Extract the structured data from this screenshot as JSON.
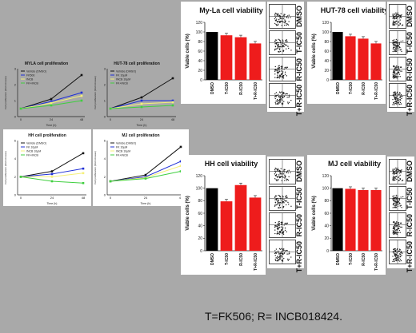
{
  "chart_data": [
    {
      "id": "myla-prolif",
      "type": "line",
      "title": "MYLA cell proliferation",
      "xlabel": "Time (h)",
      "ylabel": "Cell proliferation (fold increase)",
      "x": [
        0,
        24,
        48
      ],
      "x_ticks": [
        "0",
        "24",
        "48"
      ],
      "ylim": [
        0,
        3
      ],
      "y_ticks": [
        "0",
        "1",
        "2",
        "3"
      ],
      "legend": [
        "Vehicle (DMSO)",
        "FK506",
        "INCB",
        "FK+INCB"
      ],
      "series": [
        {
          "name": "Vehicle (DMSO)",
          "color": "#111111",
          "values": [
            0.5,
            1.1,
            2.6
          ]
        },
        {
          "name": "FK506",
          "color": "#1f2fd6",
          "values": [
            0.5,
            0.95,
            1.5
          ]
        },
        {
          "name": "INCB",
          "color": "#f5f07a",
          "values": [
            0.5,
            0.85,
            1.3
          ]
        },
        {
          "name": "FK+INCB",
          "color": "#3fcf3f",
          "values": [
            0.5,
            0.7,
            1.0
          ]
        }
      ]
    },
    {
      "id": "hut78-prolif",
      "type": "line",
      "title": "HUT-78 cell proliferation",
      "xlabel": "Time (h)",
      "ylabel": "Cell proliferation (fold increase)",
      "x": [
        0,
        24,
        48
      ],
      "x_ticks": [
        "0",
        "24",
        "48"
      ],
      "ylim": [
        0,
        3
      ],
      "y_ticks": [
        "0",
        "1",
        "2",
        "3"
      ],
      "legend": [
        "Vehicle (DMSO)",
        "FK 10µM",
        "INCB 10µM",
        "FK+INCB"
      ],
      "series": [
        {
          "name": "Vehicle (DMSO)",
          "color": "#111111",
          "values": [
            0.5,
            1.2,
            2.4
          ]
        },
        {
          "name": "FK 10µM",
          "color": "#1f2fd6",
          "values": [
            0.5,
            1.0,
            1.0
          ]
        },
        {
          "name": "INCB 10µM",
          "color": "#f5f07a",
          "values": [
            0.5,
            0.8,
            0.9
          ]
        },
        {
          "name": "FK+INCB",
          "color": "#3fcf3f",
          "values": [
            0.5,
            0.6,
            0.7
          ]
        }
      ]
    },
    {
      "id": "hh-prolif",
      "type": "line",
      "title": "HH cell proliferation",
      "xlabel": "Time (h)",
      "ylabel": "Cell proliferation (fold increase)",
      "x": [
        0,
        24,
        48
      ],
      "x_ticks": [
        "0",
        "24",
        "48"
      ],
      "ylim": [
        0,
        6
      ],
      "y_ticks": [
        "0",
        "2",
        "4",
        "6"
      ],
      "legend": [
        "Vehicle (DMSO)",
        "FK 10µM",
        "INCB 10µM",
        "FK+INCB"
      ],
      "series": [
        {
          "name": "Vehicle (DMSO)",
          "color": "#111111",
          "values": [
            2,
            2.6,
            4.6
          ]
        },
        {
          "name": "FK 10µM",
          "color": "#1f2fd6",
          "values": [
            2,
            2.3,
            2.9
          ]
        },
        {
          "name": "INCB 10µM",
          "color": "#f5f07a",
          "values": [
            2,
            2.0,
            2.4
          ]
        },
        {
          "name": "FK+INCB",
          "color": "#3fcf3f",
          "values": [
            2,
            1.5,
            1.3
          ]
        }
      ]
    },
    {
      "id": "mj-prolif",
      "type": "line",
      "title": "MJ cell proliferation",
      "xlabel": "Time (h)",
      "ylabel": "Cell proliferation (fold increase)",
      "x": [
        0,
        24,
        48
      ],
      "x_ticks": [
        "0",
        "24",
        "48"
      ],
      "ylim": [
        0,
        6
      ],
      "y_ticks": [
        "0",
        "2",
        "4",
        "6"
      ],
      "legend": [
        "Vehicle (DMSO)",
        "FK 10µM",
        "INCB 10µM",
        "FK+INCB"
      ],
      "series": [
        {
          "name": "Vehicle (DMSO)",
          "color": "#111111",
          "values": [
            1.5,
            2.2,
            5.3
          ]
        },
        {
          "name": "FK 10µM",
          "color": "#1f2fd6",
          "values": [
            1.5,
            2.0,
            3.7
          ]
        },
        {
          "name": "INCB 10µM",
          "color": "#f5f07a",
          "values": [
            1.5,
            1.9,
            3.2
          ]
        },
        {
          "name": "FK+INCB",
          "color": "#3fcf3f",
          "values": [
            1.5,
            1.8,
            2.6
          ]
        }
      ]
    },
    {
      "id": "myla-viab",
      "type": "bar",
      "title": "My-La cell viability",
      "ylabel": "Viable cells (%)",
      "categories": [
        "DMSO",
        "T-IC50",
        "R-IC50",
        "T+R-IC50"
      ],
      "values": [
        100,
        93,
        89,
        76
      ],
      "colors": [
        "#000000",
        "#ee1c1c",
        "#ee1c1c",
        "#ee1c1c"
      ],
      "ylim": [
        0,
        120
      ],
      "y_ticks": [
        "0",
        "20",
        "40",
        "60",
        "80",
        "100",
        "120"
      ]
    },
    {
      "id": "hut78-viab",
      "type": "bar",
      "title": "HUT-78 cell viability",
      "ylabel": "Viable cells (%)",
      "categories": [
        "DMSO",
        "T-IC50",
        "R-IC50",
        "T+R-IC50"
      ],
      "values": [
        100,
        91,
        86,
        76
      ],
      "colors": [
        "#000000",
        "#ee1c1c",
        "#ee1c1c",
        "#ee1c1c"
      ],
      "ylim": [
        0,
        120
      ],
      "y_ticks": [
        "0",
        "20",
        "40",
        "60",
        "80",
        "100",
        "120"
      ]
    },
    {
      "id": "hh-viab",
      "type": "bar",
      "title": "HH cell viability",
      "ylabel": "Viable cells (%)",
      "categories": [
        "DMSO",
        "T-IC50",
        "R-IC50",
        "T+R-IC50"
      ],
      "values": [
        100,
        79,
        105,
        85
      ],
      "colors": [
        "#000000",
        "#ee1c1c",
        "#ee1c1c",
        "#ee1c1c"
      ],
      "ylim": [
        0,
        120
      ],
      "y_ticks": [
        "0",
        "20",
        "40",
        "60",
        "80",
        "100",
        "120"
      ]
    },
    {
      "id": "mj-viab",
      "type": "bar",
      "title": "MJ cell viability",
      "ylabel": "Viable cells (%)",
      "categories": [
        "DMSO",
        "T-IC50",
        "R-IC50",
        "T+R-IC50"
      ],
      "values": [
        100,
        99,
        97,
        97
      ],
      "colors": [
        "#000000",
        "#ee1c1c",
        "#ee1c1c",
        "#ee1c1c"
      ],
      "ylim": [
        0,
        120
      ],
      "y_ticks": [
        "0",
        "20",
        "40",
        "60",
        "80",
        "100",
        "120"
      ]
    }
  ],
  "flow_labels": [
    "DMSO",
    "T-IC50",
    "R-IC50",
    "T+R-IC50"
  ],
  "footnote": "T=FK506; R= INCB018424."
}
